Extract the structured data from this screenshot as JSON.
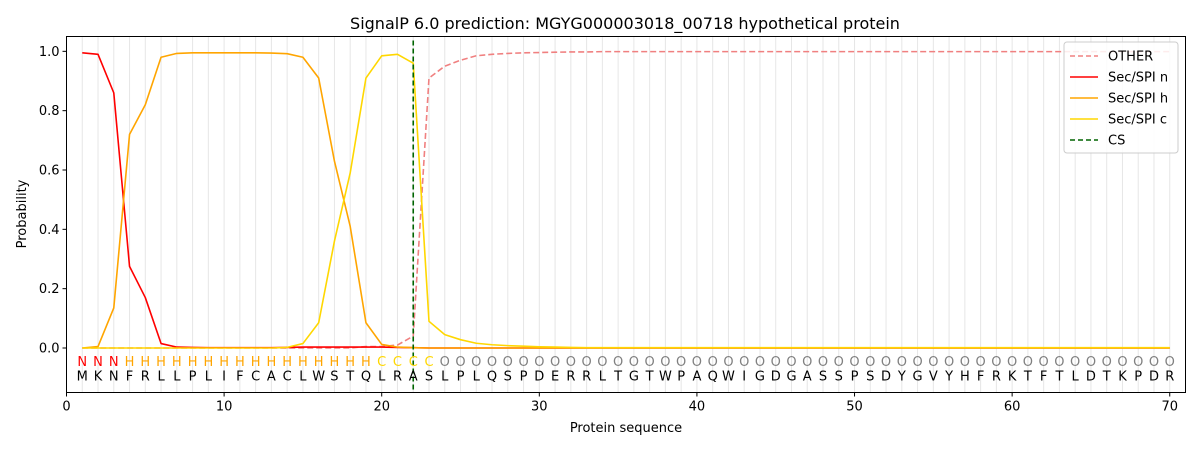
{
  "chart_data": {
    "type": "line",
    "title": "SignalP 6.0 prediction: MGYG000003018_00718 hypothetical protein",
    "xlabel": "Protein sequence",
    "ylabel": "Probability",
    "xlim": [
      0,
      71
    ],
    "ylim": [
      -0.15,
      1.05
    ],
    "xticks": [
      0,
      10,
      20,
      30,
      40,
      50,
      60,
      70
    ],
    "yticks": [
      0.0,
      0.2,
      0.4,
      0.6,
      0.8,
      1.0
    ],
    "ytick_labels": [
      "0.0",
      "0.2",
      "0.4",
      "0.6",
      "0.8",
      "1.0"
    ],
    "legend_position": "top-right",
    "sequence": "MKNFRLLPLIFCACLWSTQLRASLPLQSPDERRLTGTWPAQWIGDGASSPSDYGVYHFRKTFTLDTKPDR",
    "labels": "NNNHHHHHHHHHHHHHHHHCCCCOOOOOOOOOOOOOOOOOOOOOOOOOOOOOOOOOOOOOOOOOOOOOOO",
    "label_colors": {
      "N": "#ff0000",
      "H": "#ffa500",
      "C": "#ffd700",
      "O": "#808080"
    },
    "cs_position": 22,
    "series": [
      {
        "name": "OTHER",
        "color": "#f08080",
        "dash": true,
        "values": [
          0.0,
          0.0,
          0.0,
          0.0,
          0.0,
          0.0,
          0.0,
          0.0,
          0.0,
          0.0,
          0.0,
          0.0,
          0.0,
          0.0,
          0.0,
          0.0,
          0.0,
          0.0,
          0.005,
          0.005,
          0.01,
          0.04,
          0.91,
          0.95,
          0.97,
          0.985,
          0.99,
          0.993,
          0.995,
          0.996,
          0.997,
          0.998,
          0.998,
          0.999,
          0.999,
          0.999,
          0.999,
          0.999,
          0.999,
          0.999,
          0.999,
          0.999,
          0.999,
          0.999,
          0.999,
          0.999,
          0.999,
          0.999,
          0.999,
          0.999,
          0.999,
          0.999,
          0.999,
          0.999,
          0.999,
          0.999,
          0.999,
          0.999,
          0.999,
          0.999,
          0.999,
          0.999,
          0.999,
          0.999,
          0.999,
          0.999,
          0.999,
          0.999,
          0.999,
          0.999
        ]
      },
      {
        "name": "Sec/SPI n",
        "color": "#ff0000",
        "dash": false,
        "values": [
          0.995,
          0.99,
          0.86,
          0.275,
          0.17,
          0.015,
          0.003,
          0.002,
          0.001,
          0.001,
          0.001,
          0.001,
          0.001,
          0.002,
          0.003,
          0.003,
          0.003,
          0.003,
          0.003,
          0.003,
          0.002,
          0.001,
          0.0,
          0.0,
          0.0,
          0.0,
          0.0,
          0.0,
          0.0,
          0.0,
          0.0,
          0.0,
          0.0,
          0.0,
          0.0,
          0.0,
          0.0,
          0.0,
          0.0,
          0.0,
          0.0,
          0.0,
          0.0,
          0.0,
          0.0,
          0.0,
          0.0,
          0.0,
          0.0,
          0.0,
          0.0,
          0.0,
          0.0,
          0.0,
          0.0,
          0.0,
          0.0,
          0.0,
          0.0,
          0.0,
          0.0,
          0.0,
          0.0,
          0.0,
          0.0,
          0.0,
          0.0,
          0.0,
          0.0,
          0.0
        ]
      },
      {
        "name": "Sec/SPI h",
        "color": "#ffa500",
        "dash": false,
        "values": [
          0.0,
          0.005,
          0.135,
          0.72,
          0.82,
          0.98,
          0.993,
          0.995,
          0.995,
          0.995,
          0.995,
          0.995,
          0.994,
          0.992,
          0.98,
          0.91,
          0.63,
          0.41,
          0.085,
          0.012,
          0.003,
          0.001,
          0.0,
          0.0,
          0.0,
          0.0,
          0.0,
          0.0,
          0.0,
          0.0,
          0.0,
          0.0,
          0.0,
          0.0,
          0.0,
          0.0,
          0.0,
          0.0,
          0.0,
          0.0,
          0.0,
          0.0,
          0.0,
          0.0,
          0.0,
          0.0,
          0.0,
          0.0,
          0.0,
          0.0,
          0.0,
          0.0,
          0.0,
          0.0,
          0.0,
          0.0,
          0.0,
          0.0,
          0.0,
          0.0,
          0.0,
          0.0,
          0.0,
          0.0,
          0.0,
          0.0,
          0.0,
          0.0,
          0.0,
          0.0
        ]
      },
      {
        "name": "Sec/SPI c",
        "color": "#ffd700",
        "dash": false,
        "values": [
          0.0,
          0.0,
          0.0,
          0.0,
          0.0,
          0.0,
          0.0,
          0.0,
          0.0,
          0.0,
          0.0,
          0.0,
          0.0,
          0.002,
          0.015,
          0.085,
          0.36,
          0.59,
          0.91,
          0.985,
          0.99,
          0.96,
          0.09,
          0.045,
          0.028,
          0.016,
          0.011,
          0.008,
          0.006,
          0.004,
          0.003,
          0.002,
          0.001,
          0.001,
          0.001,
          0.001,
          0.001,
          0.001,
          0.001,
          0.001,
          0.001,
          0.001,
          0.001,
          0.001,
          0.001,
          0.001,
          0.001,
          0.001,
          0.001,
          0.001,
          0.001,
          0.001,
          0.001,
          0.001,
          0.001,
          0.001,
          0.001,
          0.001,
          0.001,
          0.001,
          0.001,
          0.001,
          0.001,
          0.001,
          0.001,
          0.001,
          0.001,
          0.001,
          0.001,
          0.001
        ]
      }
    ],
    "cs_series": {
      "name": "CS",
      "color": "#006400"
    }
  }
}
